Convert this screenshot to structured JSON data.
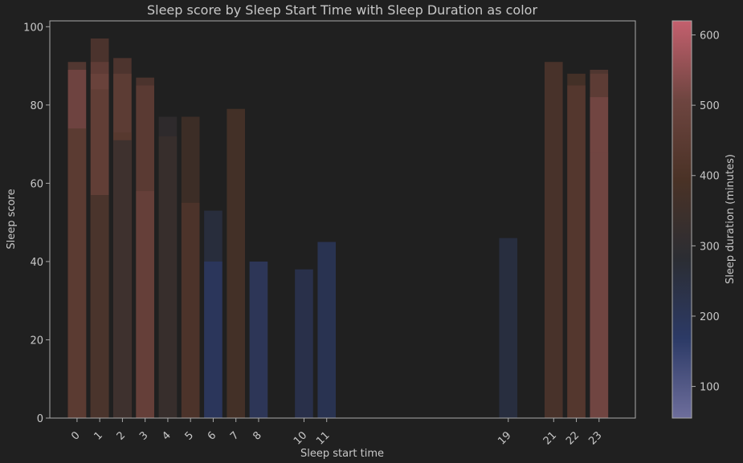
{
  "chart_data": {
    "type": "bar",
    "title": "Sleep score by Sleep Start Time with Sleep Duration as color",
    "xlabel": "Sleep start time",
    "ylabel": "Sleep score",
    "xlim": [
      -1.2,
      24.6
    ],
    "ylim": [
      0,
      101.5
    ],
    "yticks": [
      0,
      20,
      40,
      60,
      80,
      100
    ],
    "xticks": [
      0,
      1,
      2,
      3,
      4,
      5,
      6,
      7,
      8,
      10,
      11,
      19,
      21,
      22,
      23
    ],
    "grid": false,
    "colorbar": {
      "label": "Sleep duration (minutes)",
      "range": [
        55,
        620
      ],
      "ticks": [
        100,
        200,
        300,
        400,
        500,
        600
      ],
      "colors": [
        "#6e6e9c",
        "#2c3a66",
        "#2b2d33",
        "#4a3226",
        "#6e4540",
        "#c4606e"
      ]
    },
    "bars": [
      {
        "x": 0,
        "score": 91,
        "duration": 470
      },
      {
        "x": 0,
        "score": 89,
        "duration": 520
      },
      {
        "x": 0,
        "score": 74,
        "duration": 430
      },
      {
        "x": 1,
        "score": 97,
        "duration": 440
      },
      {
        "x": 1,
        "score": 91,
        "duration": 480
      },
      {
        "x": 1,
        "score": 88,
        "duration": 500
      },
      {
        "x": 1,
        "score": 84,
        "duration": 460
      },
      {
        "x": 1,
        "score": 57,
        "duration": 370
      },
      {
        "x": 2,
        "score": 92,
        "duration": 450
      },
      {
        "x": 2,
        "score": 88,
        "duration": 470
      },
      {
        "x": 2,
        "score": 73,
        "duration": 430
      },
      {
        "x": 2,
        "score": 71,
        "duration": 320
      },
      {
        "x": 3,
        "score": 87,
        "duration": 440
      },
      {
        "x": 3,
        "score": 85,
        "duration": 460
      },
      {
        "x": 3,
        "score": 58,
        "duration": 490
      },
      {
        "x": 4,
        "score": 77,
        "duration": 310
      },
      {
        "x": 4,
        "score": 72,
        "duration": 340
      },
      {
        "x": 5,
        "score": 77,
        "duration": 380
      },
      {
        "x": 5,
        "score": 55,
        "duration": 420
      },
      {
        "x": 6,
        "score": 53,
        "duration": 240
      },
      {
        "x": 6,
        "score": 40,
        "duration": 170
      },
      {
        "x": 7,
        "score": 79,
        "duration": 410
      },
      {
        "x": 8,
        "score": 40,
        "duration": 160
      },
      {
        "x": 10,
        "score": 38,
        "duration": 200
      },
      {
        "x": 11,
        "score": 45,
        "duration": 180
      },
      {
        "x": 19,
        "score": 46,
        "duration": 230
      },
      {
        "x": 21,
        "score": 91,
        "duration": 430
      },
      {
        "x": 22,
        "score": 88,
        "duration": 410
      },
      {
        "x": 22,
        "score": 85,
        "duration": 440
      },
      {
        "x": 23,
        "score": 89,
        "duration": 460
      },
      {
        "x": 23,
        "score": 88,
        "duration": 470
      },
      {
        "x": 23,
        "score": 82,
        "duration": 520
      },
      {
        "x": 23,
        "score": 68,
        "duration": 510
      }
    ]
  }
}
